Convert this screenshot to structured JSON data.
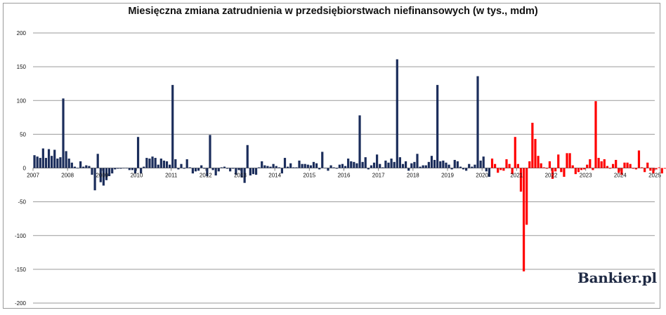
{
  "brand": {
    "logo_text": "Bankier.pl"
  },
  "chart_data": {
    "type": "bar",
    "title": "Miesięczna zmiana zatrudnienia w przedsiębiorstwach niefinansowych (w tys., mdm)",
    "xlabel": "",
    "ylabel": "",
    "ylim": [
      -200,
      200
    ],
    "yticks": [
      200,
      150,
      100,
      50,
      0,
      -50,
      -100,
      -150,
      -200
    ],
    "x_tick_labels": [
      "2007",
      "2008",
      "2009",
      "2010",
      "2011",
      "2012",
      "2013",
      "2014",
      "2015",
      "2016",
      "2017",
      "2018",
      "2019",
      "2020",
      "2021",
      "2022",
      "2023",
      "2024",
      "2025"
    ],
    "grid": true,
    "legend": "none",
    "colors": {
      "default": "#1b2d5b",
      "highlight": "#ff0000",
      "grid": "#9a9a9a"
    },
    "series": [
      {
        "start_period": "2007-01",
        "values": [
          19,
          17,
          15,
          29,
          15,
          28,
          18,
          27,
          14,
          16,
          103,
          25,
          14,
          8,
          2,
          0,
          10,
          2,
          4,
          3,
          -10,
          -33,
          21,
          -21,
          -26,
          -18,
          -12,
          -8,
          -2,
          -1,
          -1,
          0,
          0,
          -3,
          -3,
          -8,
          46,
          -8,
          2,
          15,
          14,
          17,
          15,
          5,
          14,
          11,
          10,
          5,
          123,
          13,
          -2,
          6,
          -1,
          13,
          1,
          -8,
          -5,
          -4,
          4,
          -1,
          -12,
          49,
          -3,
          -11,
          -5,
          1,
          2,
          -1,
          -5,
          -1,
          -10,
          -3,
          -14,
          -22,
          34,
          -11,
          -9,
          -10,
          1,
          10,
          4,
          3,
          2,
          6,
          3,
          1,
          -8,
          15,
          2,
          7,
          1,
          1,
          11,
          6,
          6,
          5,
          4,
          9,
          7,
          -2,
          24,
          0,
          -4,
          4,
          1,
          -1,
          5,
          6,
          3,
          14,
          10,
          9,
          7,
          78,
          9,
          16,
          -2,
          4,
          8,
          20,
          6,
          1,
          11,
          8,
          14,
          9,
          161,
          16,
          6,
          10,
          -4,
          7,
          9,
          21,
          2,
          4,
          4,
          9,
          18,
          12,
          123,
          10,
          11,
          8,
          5,
          -2,
          12,
          10,
          2,
          -2,
          -4,
          6,
          2,
          5,
          136,
          11,
          17,
          -5,
          -13,
          14,
          6,
          -7,
          -3,
          -4,
          13,
          6,
          -9,
          46,
          6,
          -35,
          -153,
          -84,
          10,
          67,
          43,
          18,
          7,
          1,
          -1,
          10,
          -16,
          -5,
          20,
          -6,
          -13,
          22,
          22,
          4,
          -9,
          -6,
          -3,
          -2,
          5,
          13,
          -3,
          99,
          15,
          10,
          13,
          3,
          -1,
          6,
          12,
          -7,
          -10,
          8,
          8,
          6,
          -1,
          -2,
          26,
          1,
          -6,
          8,
          -4,
          -8,
          -2,
          1,
          -8,
          -1,
          -2,
          -3,
          -1,
          0,
          1,
          21,
          -3,
          -9,
          -11,
          -4,
          -14,
          -2,
          6,
          -19,
          -8,
          -5,
          4,
          -7,
          1,
          -2,
          -6,
          3,
          -2,
          -13
        ],
        "highlight_from_index": 159
      }
    ]
  }
}
